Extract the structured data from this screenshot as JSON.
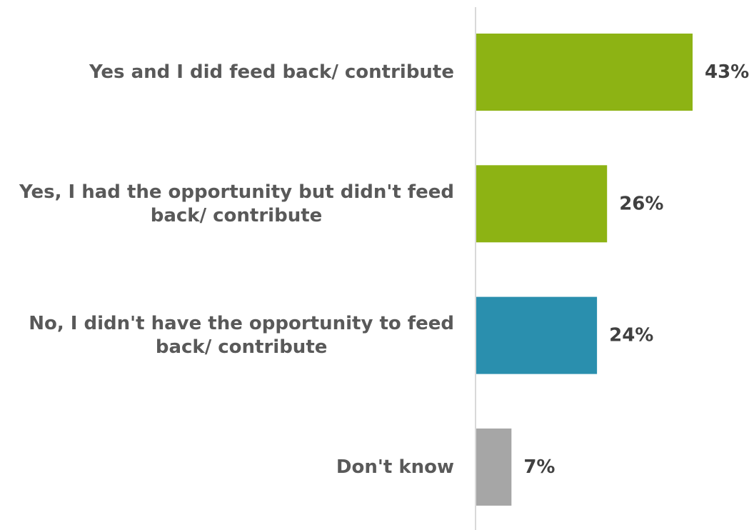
{
  "chart_data": {
    "type": "bar",
    "orientation": "horizontal",
    "categories": [
      [
        "Yes and I did feed back/ contribute"
      ],
      [
        "Yes, I had the opportunity but didn't feed",
        "back/ contribute"
      ],
      [
        "No, I didn't have the opportunity to feed",
        "back/ contribute"
      ],
      [
        "Don't know"
      ]
    ],
    "values": [
      43,
      26,
      24,
      7
    ],
    "value_labels": [
      "43%",
      "26%",
      "24%",
      "7%"
    ],
    "colors": [
      "#8db314",
      "#8db314",
      "#2a8fae",
      "#a6a6a6"
    ],
    "axis_color": "#d9d9d9",
    "xlim": [
      0,
      43
    ],
    "grid": false,
    "legend": "none",
    "title": "",
    "xlabel": "",
    "ylabel": ""
  }
}
